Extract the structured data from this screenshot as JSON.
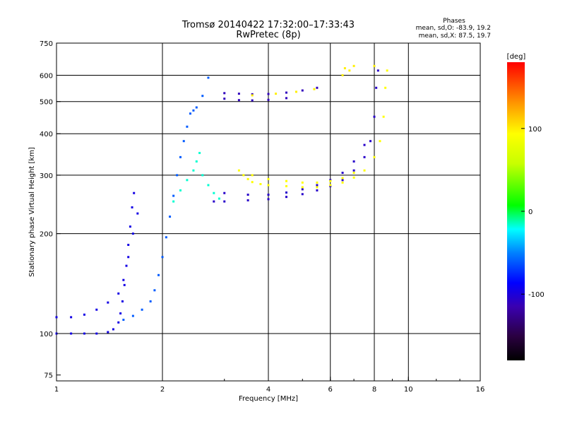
{
  "chart_data": {
    "type": "scatter",
    "title": "Tromsø 20140422 17:32:00–17:33:43",
    "subtitle": "RwPretec (8p)",
    "xlabel": "Frequency [MHz]",
    "ylabel": "Stationary phase Virtual Height [km]",
    "x_scale": "log",
    "y_scale": "log",
    "xlim": [
      1,
      16
    ],
    "ylim": [
      72,
      750
    ],
    "x_ticks": [
      1,
      2,
      4,
      6,
      8,
      10,
      16
    ],
    "x_tick_labels": [
      "1",
      "2",
      "4",
      "6",
      "8",
      "10",
      "16"
    ],
    "y_ticks": [
      75,
      100,
      200,
      300,
      400,
      500,
      600,
      750
    ],
    "y_tick_labels": [
      "75",
      "100",
      "200",
      "300",
      "400",
      "500",
      "600",
      "750"
    ],
    "grid": true,
    "phases": {
      "title": "Phases",
      "line_o": "mean, sd,O: -83.9, 19.2",
      "line_x": "mean, sd,X:  87.5, 19.7"
    },
    "colorbar": {
      "label": "[deg]",
      "range": [
        -180,
        180
      ],
      "ticks": [
        100,
        0,
        -100
      ],
      "tick_labels": [
        "100",
        "0",
        "-100"
      ],
      "colormap": "rainbow"
    },
    "series": [
      {
        "color_value": -95,
        "points": [
          [
            1.0,
            100
          ],
          [
            1.1,
            100
          ],
          [
            1.2,
            100
          ],
          [
            1.3,
            100
          ],
          [
            1.4,
            101
          ],
          [
            1.45,
            103
          ],
          [
            1.5,
            108
          ],
          [
            1.52,
            115
          ],
          [
            1.54,
            125
          ],
          [
            1.56,
            140
          ],
          [
            1.58,
            160
          ],
          [
            1.6,
            185
          ],
          [
            1.62,
            210
          ],
          [
            1.64,
            240
          ],
          [
            1.66,
            265
          ],
          [
            1.0,
            112
          ],
          [
            1.1,
            112
          ],
          [
            1.2,
            114
          ],
          [
            1.3,
            118
          ],
          [
            1.4,
            124
          ],
          [
            1.5,
            132
          ],
          [
            1.55,
            145
          ],
          [
            1.6,
            170
          ],
          [
            1.65,
            200
          ],
          [
            1.7,
            230
          ]
        ]
      },
      {
        "color_value": -60,
        "points": [
          [
            1.55,
            110
          ],
          [
            1.65,
            113
          ],
          [
            1.75,
            118
          ],
          [
            1.85,
            125
          ],
          [
            1.9,
            135
          ],
          [
            1.95,
            150
          ],
          [
            2.0,
            170
          ],
          [
            2.05,
            195
          ],
          [
            2.1,
            225
          ],
          [
            2.15,
            260
          ],
          [
            2.2,
            300
          ],
          [
            2.25,
            340
          ],
          [
            2.3,
            380
          ],
          [
            2.35,
            420
          ],
          [
            2.4,
            460
          ],
          [
            2.45,
            470
          ],
          [
            2.5,
            480
          ],
          [
            2.6,
            520
          ],
          [
            2.7,
            590
          ]
        ]
      },
      {
        "color_value": -15,
        "points": [
          [
            2.15,
            250
          ],
          [
            2.25,
            270
          ],
          [
            2.35,
            290
          ],
          [
            2.45,
            310
          ],
          [
            2.5,
            330
          ],
          [
            2.55,
            350
          ],
          [
            2.6,
            300
          ],
          [
            2.7,
            280
          ],
          [
            2.8,
            265
          ],
          [
            2.9,
            255
          ]
        ]
      },
      {
        "color_value": -105,
        "points": [
          [
            2.8,
            250
          ],
          [
            3.0,
            250
          ],
          [
            3.5,
            252
          ],
          [
            4.0,
            254
          ],
          [
            4.5,
            258
          ],
          [
            5.0,
            263
          ],
          [
            5.5,
            270
          ],
          [
            6.0,
            278
          ],
          [
            6.5,
            290
          ],
          [
            7.0,
            310
          ],
          [
            7.5,
            340
          ],
          [
            7.8,
            380
          ],
          [
            8.0,
            450
          ],
          [
            8.1,
            550
          ],
          [
            8.2,
            620
          ],
          [
            3.0,
            265
          ],
          [
            3.5,
            262
          ],
          [
            4.0,
            262
          ],
          [
            4.5,
            266
          ],
          [
            5.0,
            272
          ],
          [
            5.5,
            280
          ],
          [
            6.0,
            290
          ],
          [
            6.5,
            305
          ],
          [
            7.0,
            330
          ],
          [
            7.5,
            370
          ]
        ]
      },
      {
        "color_value": 95,
        "points": [
          [
            3.4,
            300
          ],
          [
            3.5,
            292
          ],
          [
            3.6,
            286
          ],
          [
            3.8,
            282
          ],
          [
            4.0,
            280
          ],
          [
            4.5,
            278
          ],
          [
            5.0,
            276
          ],
          [
            5.5,
            276
          ],
          [
            6.0,
            280
          ],
          [
            6.5,
            285
          ],
          [
            7.0,
            295
          ],
          [
            7.5,
            310
          ],
          [
            8.0,
            340
          ],
          [
            8.3,
            380
          ],
          [
            8.5,
            450
          ],
          [
            8.6,
            550
          ],
          [
            8.7,
            620
          ],
          [
            3.3,
            310
          ],
          [
            3.6,
            300
          ],
          [
            4.0,
            292
          ],
          [
            4.5,
            288
          ],
          [
            5.0,
            285
          ],
          [
            5.5,
            285
          ],
          [
            6.0,
            288
          ],
          [
            6.5,
            294
          ],
          [
            7.0,
            305
          ]
        ]
      },
      {
        "color_value": -110,
        "points": [
          [
            3.0,
            530
          ],
          [
            3.3,
            528
          ],
          [
            3.6,
            526
          ],
          [
            4.0,
            527
          ],
          [
            4.5,
            532
          ],
          [
            5.0,
            540
          ],
          [
            5.5,
            550
          ],
          [
            3.0,
            510
          ],
          [
            3.3,
            505
          ],
          [
            3.6,
            504
          ],
          [
            4.0,
            506
          ],
          [
            4.5,
            512
          ]
        ]
      },
      {
        "color_value": 100,
        "points": [
          [
            3.6,
            522
          ],
          [
            4.2,
            528
          ],
          [
            4.8,
            535
          ],
          [
            5.4,
            545
          ],
          [
            6.5,
            600
          ],
          [
            6.6,
            630
          ],
          [
            7.0,
            640
          ],
          [
            6.8,
            620
          ],
          [
            8.0,
            640
          ]
        ]
      }
    ]
  }
}
